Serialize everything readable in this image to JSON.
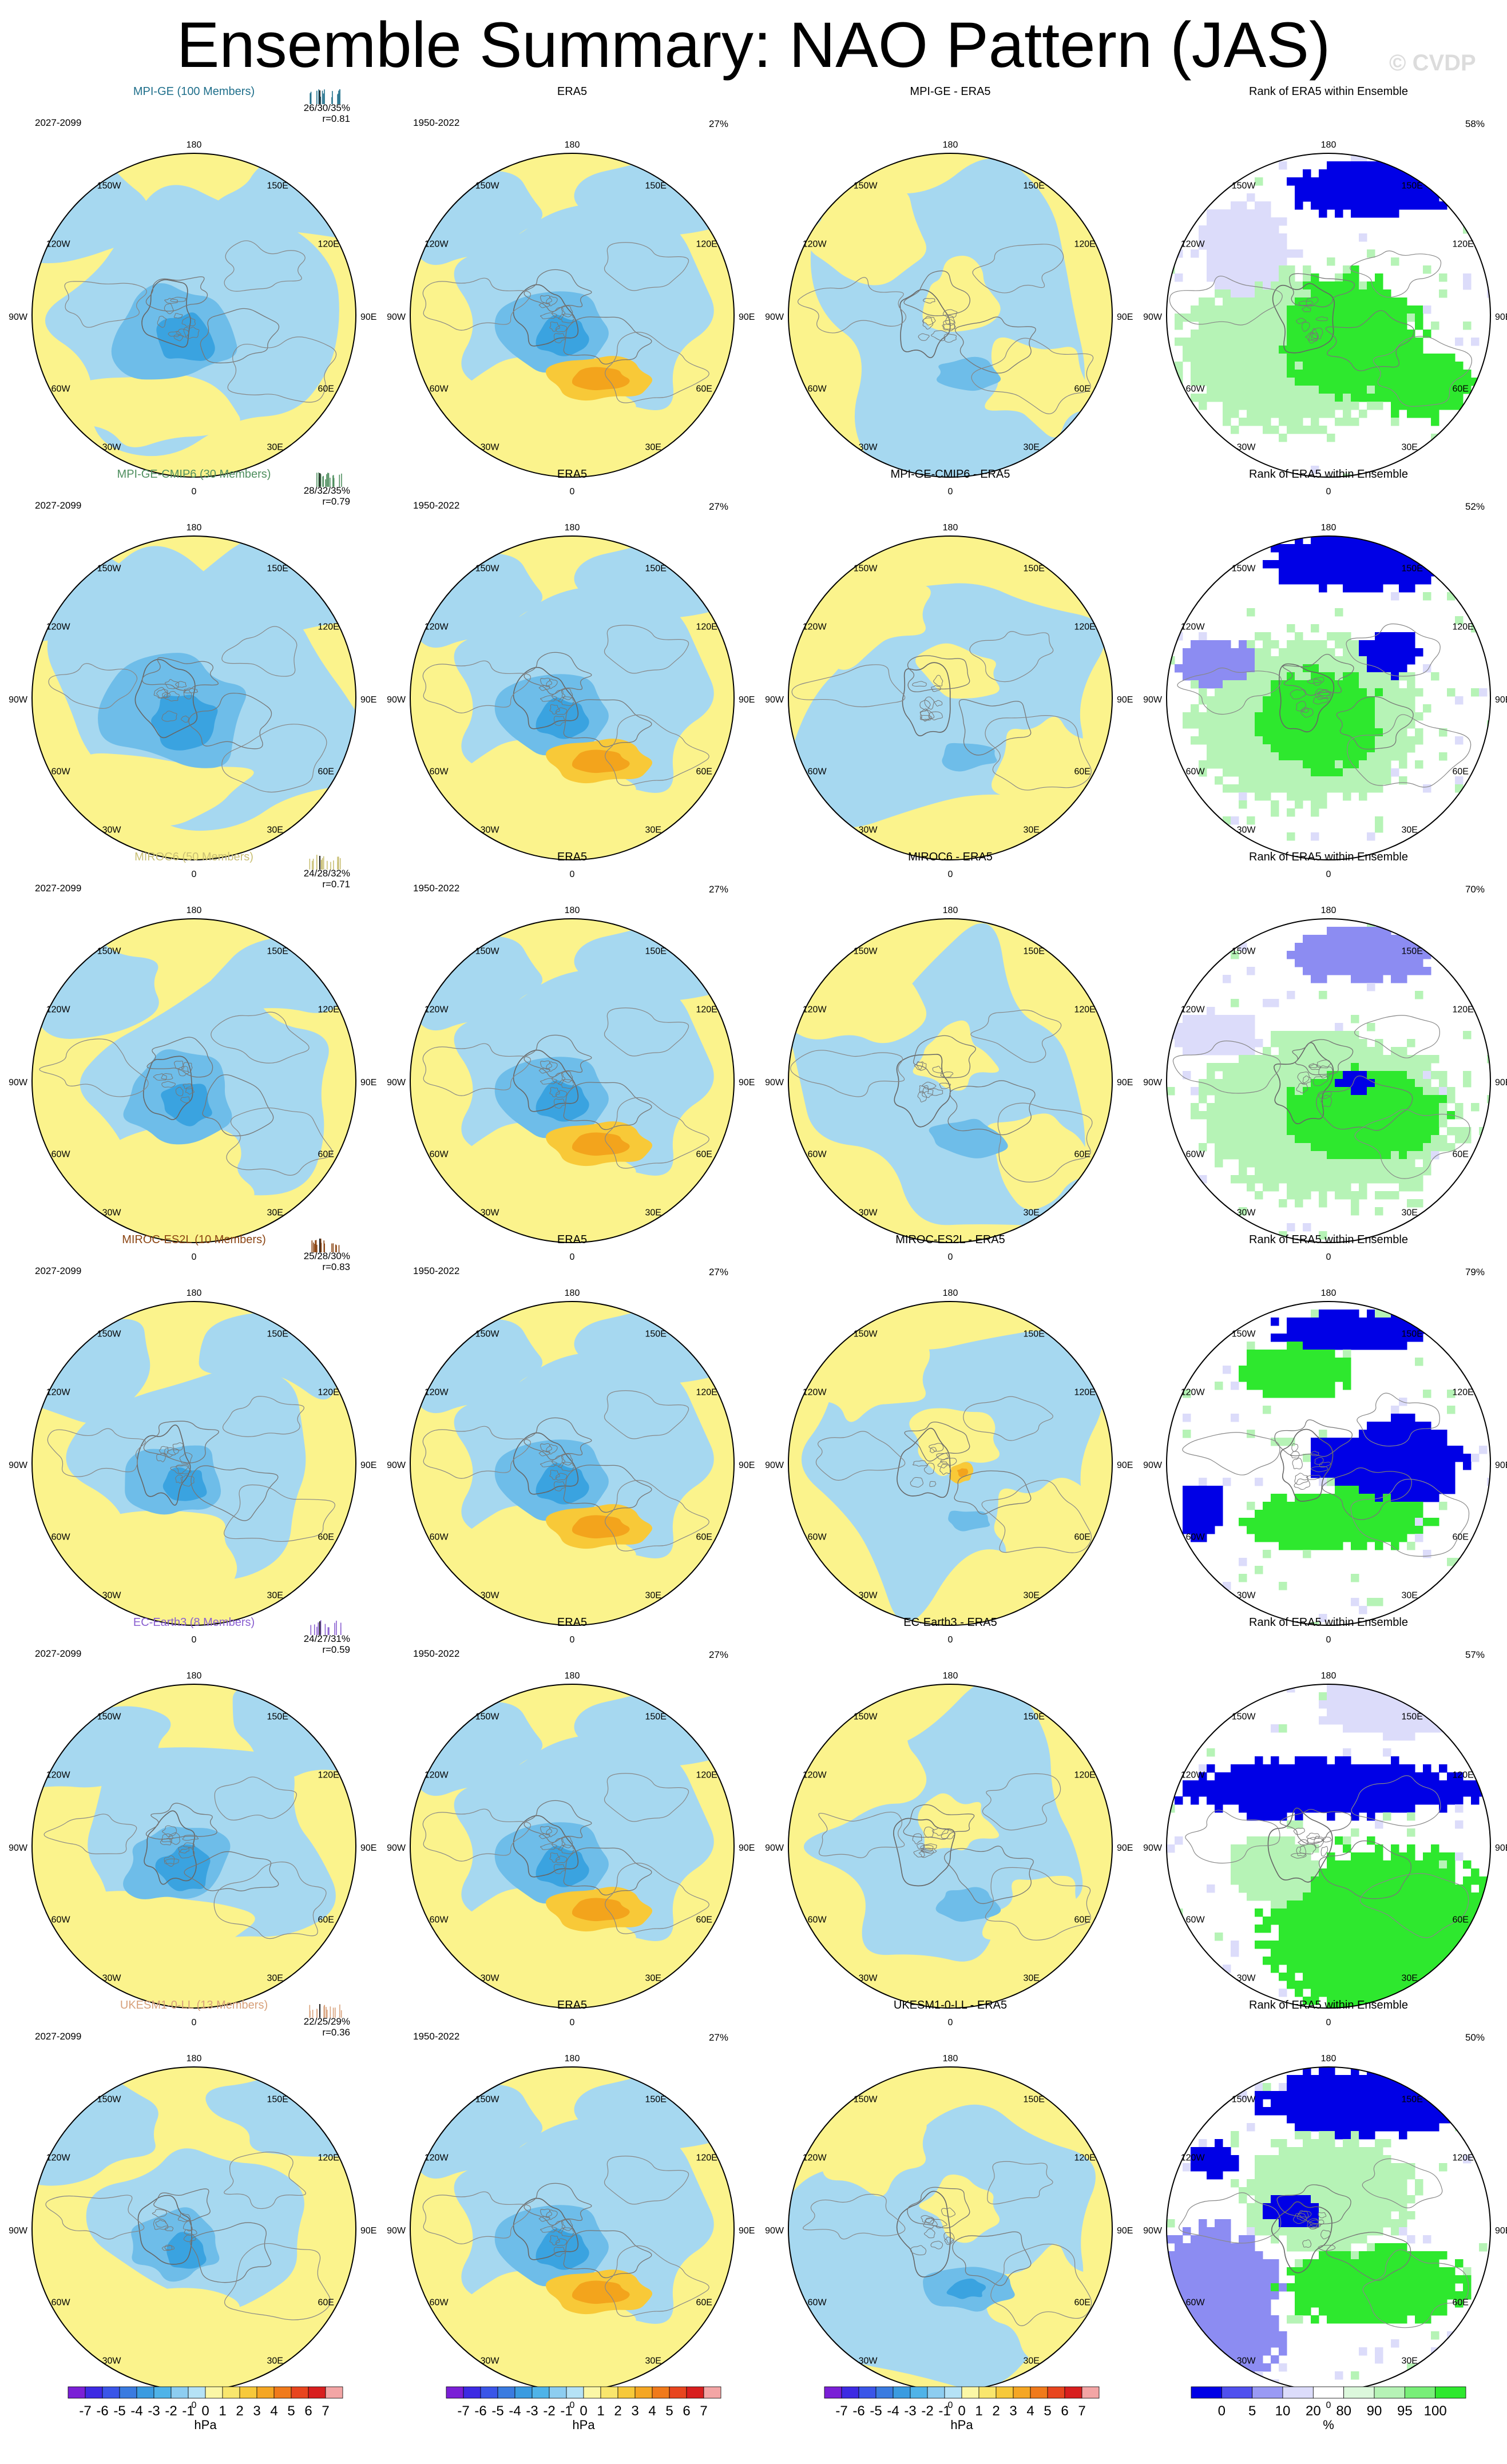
{
  "figure": {
    "title": "Ensemble Summary: NAO Pattern (JAS)",
    "watermark": "© CVDP"
  },
  "chart_data": {
    "type": "heatmap",
    "projection": "polar-stereographic",
    "hemisphere": "north",
    "lon_labels": [
      "180",
      "150E",
      "120E",
      "90E",
      "60E",
      "30E",
      "0",
      "30W",
      "60W",
      "90W",
      "120W",
      "150W"
    ],
    "col_period_labels": [
      "2027-2099",
      "1950-2022"
    ],
    "difference_title_suffix": " - ERA5",
    "obs_title": "ERA5",
    "obs_pct": "27%",
    "rank_title": "Rank of ERA5 within Ensemble",
    "colors": {
      "yellow": "#fbf38c",
      "blue_light": "#a6d8f0",
      "blue_mid": "#6ebde9",
      "blue_dark": "#3aa3e0",
      "orange_light": "#f8c938",
      "orange": "#f3a41c",
      "rank_green": "#2ee82e",
      "rank_lightgreen": "#b6f3b6",
      "rank_blue": "#0000e6",
      "rank_lightblue": "#8c8cf2",
      "rank_paleblue": "#dcdcfa"
    },
    "rows": [
      {
        "model": "MPI-GE (100 Members)",
        "color": "#1f6f8b",
        "pct_range": "26/30/35%",
        "r": "r=0.81",
        "diff_title": "MPI-GE - ERA5",
        "rank_pct": "58%",
        "strength": 1.2,
        "diff_blue": 0.6,
        "diff_orange": 0.0,
        "rank_pattern": 0
      },
      {
        "model": "MPI-GE-CMIP6 (30 Members)",
        "color": "#4f8f5f",
        "pct_range": "28/32/35%",
        "r": "r=0.79",
        "diff_title": "MPI-GE-CMIP6 - ERA5",
        "rank_pct": "52%",
        "strength": 1.3,
        "diff_blue": 0.5,
        "diff_orange": 0.0,
        "rank_pattern": 1
      },
      {
        "model": "MIROC6 (50 Members)",
        "color": "#c9bf74",
        "pct_range": "24/28/32%",
        "r": "r=0.71",
        "diff_title": "MIROC6 - ERA5",
        "rank_pct": "70%",
        "strength": 1.0,
        "diff_blue": 0.8,
        "diff_orange": 0.0,
        "rank_pattern": 2
      },
      {
        "model": "MIROC-ES2L (10 Members)",
        "color": "#8b4513",
        "pct_range": "25/28/30%",
        "r": "r=0.83",
        "diff_title": "MIROC-ES2L - ERA5",
        "rank_pct": "79%",
        "strength": 0.9,
        "diff_blue": 0.3,
        "diff_orange": 0.6,
        "rank_pattern": 3
      },
      {
        "model": "EC-Earth3 (8 Members)",
        "color": "#8a5fd0",
        "pct_range": "24/27/31%",
        "r": "r=0.59",
        "diff_title": "EC-Earth3 - ERA5",
        "rank_pct": "57%",
        "strength": 1.0,
        "diff_blue": 0.6,
        "diff_orange": 0.0,
        "rank_pattern": 4
      },
      {
        "model": "UKESM1-0-LL (13 Members)",
        "color": "#d7a07a",
        "pct_range": "22/25/29%",
        "r": "r=0.36",
        "diff_title": "UKESM1-0-LL - ERA5",
        "rank_pct": "50%",
        "strength": 0.8,
        "diff_blue": 1.0,
        "diff_orange": 0.0,
        "rank_pattern": 5
      }
    ],
    "colorbar_hpa": {
      "label": "hPa",
      "ticks": [
        "-7",
        "-6",
        "-5",
        "-4",
        "-3",
        "-2",
        "-1",
        "0",
        "1",
        "2",
        "3",
        "4",
        "5",
        "6",
        "7"
      ],
      "colors": [
        "#7a1fd6",
        "#3d2ae3",
        "#3a55e8",
        "#3a7be0",
        "#3a9be0",
        "#4fb3e8",
        "#8dcdf0",
        "#b5e2f6",
        "#fbf7a6",
        "#f9e66d",
        "#f7c93a",
        "#f5a623",
        "#f07a1b",
        "#e8451e",
        "#d81e1e",
        "#f3a5a5"
      ]
    },
    "colorbar_rank": {
      "label": "%",
      "ticks": [
        "0",
        "5",
        "10",
        "20",
        "80",
        "90",
        "95",
        "100"
      ],
      "colors": [
        "#0000e6",
        "#5050ee",
        "#9a9af4",
        "#dcdcfa",
        "#ffffff",
        "#dcf8dc",
        "#b6f3b6",
        "#78ee78",
        "#2ee82e"
      ]
    }
  }
}
